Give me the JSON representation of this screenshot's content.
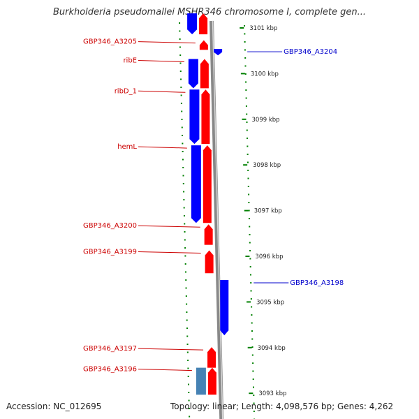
{
  "title": "Burkholderia pseudomallei MSHR346 chromosome I, complete gen...",
  "footer": {
    "accession": "Accession: NC_012695",
    "summary": "Topology: linear; Length: 4,098,576 bp; Genes: 4,262"
  },
  "colors": {
    "forward_strand": "#ff0000",
    "reverse_strand": "#0000ff",
    "other_feature": "#4682b4",
    "forward_label": "#cc0000",
    "reverse_label": "#0000cc",
    "axis": "#888888",
    "dots": "#008000"
  },
  "scale": {
    "unit": "kbp",
    "ticks": [
      {
        "label": "3101 kbp",
        "kbp": 3101
      },
      {
        "label": "3100 kbp",
        "kbp": 3100
      },
      {
        "label": "3099 kbp",
        "kbp": 3099
      },
      {
        "label": "3098 kbp",
        "kbp": 3098
      },
      {
        "label": "3097 kbp",
        "kbp": 3097
      },
      {
        "label": "3096 kbp",
        "kbp": 3096
      },
      {
        "label": "3095 kbp",
        "kbp": 3095
      },
      {
        "label": "3094 kbp",
        "kbp": 3094
      },
      {
        "label": "3093 kbp",
        "kbp": 3093
      }
    ]
  },
  "genes": [
    {
      "label": "",
      "strand": "reverse",
      "start_kbp": 3101.32,
      "end_kbp": 3100.86,
      "lane": 1,
      "shape": "arrow"
    },
    {
      "label": "",
      "strand": "forward",
      "start_kbp": 3101.32,
      "end_kbp": 3100.86,
      "lane": 2,
      "shape": "arrow"
    },
    {
      "label": "GBP346_A3205",
      "strand": "forward",
      "start_kbp": 3100.73,
      "end_kbp": 3100.52,
      "lane": 2,
      "shape": "arrow"
    },
    {
      "label": "GBP346_A3204",
      "strand": "reverse",
      "start_kbp": 3100.54,
      "end_kbp": 3100.4,
      "lane": 3,
      "shape": "arrow"
    },
    {
      "label": "ribE",
      "strand": "reverse",
      "start_kbp": 3100.32,
      "end_kbp": 3099.68,
      "lane": 1,
      "shape": "arrow"
    },
    {
      "label": "",
      "strand": "forward",
      "start_kbp": 3100.32,
      "end_kbp": 3099.68,
      "lane": 2,
      "shape": "arrow"
    },
    {
      "label": "ribD_1",
      "strand": "reverse",
      "start_kbp": 3099.65,
      "end_kbp": 3098.46,
      "lane": 1,
      "shape": "arrow"
    },
    {
      "label": "",
      "strand": "forward",
      "start_kbp": 3099.65,
      "end_kbp": 3098.46,
      "lane": 2,
      "shape": "arrow"
    },
    {
      "label": "hemL",
      "strand": "reverse",
      "start_kbp": 3098.43,
      "end_kbp": 3096.73,
      "lane": 1,
      "shape": "arrow"
    },
    {
      "label": "",
      "strand": "forward",
      "start_kbp": 3098.43,
      "end_kbp": 3096.73,
      "lane": 2,
      "shape": "arrow"
    },
    {
      "label": "GBP346_A3200",
      "strand": "forward",
      "start_kbp": 3096.7,
      "end_kbp": 3096.25,
      "lane": 2,
      "shape": "arrow"
    },
    {
      "label": "GBP346_A3199",
      "strand": "forward",
      "start_kbp": 3096.13,
      "end_kbp": 3095.63,
      "lane": 2,
      "shape": "arrow"
    },
    {
      "label": "GBP346_A3198",
      "strand": "reverse",
      "start_kbp": 3095.48,
      "end_kbp": 3094.27,
      "lane": 3,
      "shape": "arrow"
    },
    {
      "label": "GBP346_A3197",
      "strand": "forward",
      "start_kbp": 3094.01,
      "end_kbp": 3093.56,
      "lane": 2,
      "shape": "arrow"
    },
    {
      "label": "GBP346_A3196",
      "strand": "other",
      "start_kbp": 3093.56,
      "end_kbp": 3092.97,
      "lane": 1,
      "shape": "box"
    },
    {
      "label": "",
      "strand": "forward",
      "start_kbp": 3093.56,
      "end_kbp": 3092.97,
      "lane": 2,
      "shape": "arrow"
    }
  ]
}
